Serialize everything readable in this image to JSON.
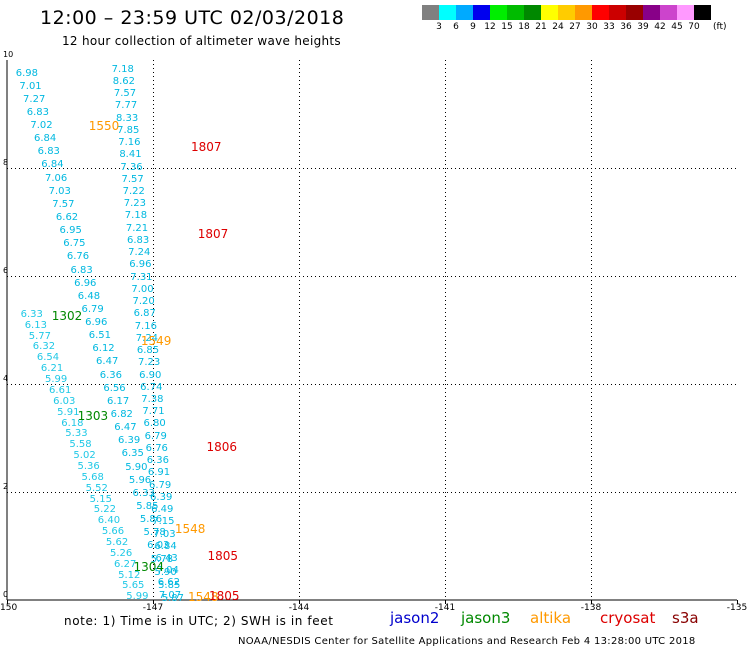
{
  "header": {
    "title": "12:00 – 23:59 UTC 02/03/2018",
    "subtitle": "12 hour collection of altimeter wave heights"
  },
  "legend": {
    "bins": [
      {
        "label": "3",
        "color": "#808080"
      },
      {
        "label": "6",
        "color": "#00ffff"
      },
      {
        "label": "9",
        "color": "#00aaff"
      },
      {
        "label": "12",
        "color": "#0000ee"
      },
      {
        "label": "15",
        "color": "#00ee00"
      },
      {
        "label": "18",
        "color": "#00bb00"
      },
      {
        "label": "21",
        "color": "#008800"
      },
      {
        "label": "24",
        "color": "#ffff00"
      },
      {
        "label": "27",
        "color": "#ffcc00"
      },
      {
        "label": "30",
        "color": "#ff9900"
      },
      {
        "label": "33",
        "color": "#ff0000"
      },
      {
        "label": "36",
        "color": "#cc0000"
      },
      {
        "label": "39",
        "color": "#990000"
      },
      {
        "label": "42",
        "color": "#880088"
      },
      {
        "label": "45",
        "color": "#cc44cc"
      },
      {
        "label": "70",
        "color": "#ff99ff"
      },
      {
        "label": "",
        "color": "#000000"
      }
    ],
    "unit": "(ft)"
  },
  "map": {
    "lon_min": -150,
    "lon_max": -135,
    "lat_min": 0,
    "lat_max": 10,
    "x_ticks": [
      {
        "value": -150,
        "label": "-150"
      },
      {
        "value": -147,
        "label": "-147"
      },
      {
        "value": -144,
        "label": "-144"
      },
      {
        "value": -141,
        "label": "-141"
      },
      {
        "value": -138,
        "label": "-138"
      },
      {
        "value": -135,
        "label": "-135"
      }
    ],
    "y_ticks": [
      {
        "value": 0,
        "label": "0"
      },
      {
        "value": 2,
        "label": "2"
      },
      {
        "value": 4,
        "label": "4"
      },
      {
        "value": 6,
        "label": "6"
      },
      {
        "value": 8,
        "label": "8"
      },
      {
        "value": 10,
        "label": "10"
      }
    ],
    "colors": {
      "light_cyan": "#1fc8e6",
      "cyan": "#00b8e0",
      "green": "#008800",
      "orange": "#ff9900",
      "red": "#dd0000"
    },
    "tracks": [
      {
        "name": "track-a",
        "color": "cyan",
        "lon_start": -149.82,
        "lon_end": -146.82,
        "lat_start": 9.75,
        "lat_end": 0.02,
        "values": [
          "6.98",
          "7.01",
          "7.27",
          "6.83",
          "7.02",
          "6.84",
          "6.83",
          "6.84",
          "7.06",
          "7.03",
          "7.57",
          "6.62",
          "6.95",
          "6.75",
          "6.76",
          "6.83",
          "6.96",
          "6.48",
          "6.79",
          "6.96",
          "6.51",
          "6.12",
          "6.47",
          "6.36",
          "6.56",
          "6.17",
          "6.82",
          "6.47",
          "6.39",
          "6.35",
          "5.90",
          "5.96",
          "6.33",
          "5.85",
          "5.86",
          "5.78",
          "6.03",
          "5.78",
          "5.90",
          "5.85",
          "5.87"
        ]
      },
      {
        "name": "track-b",
        "color": "cyan",
        "lon_start": -147.85,
        "lon_end": -146.88,
        "lat_start": 9.82,
        "lat_end": 0.08,
        "values": [
          "7.18",
          "8.62",
          "7.57",
          "7.77",
          "8.33",
          "7.85",
          "7.16",
          "8.41",
          "7.36",
          "7.57",
          "7.22",
          "7.23",
          "7.18",
          "7.21",
          "6.83",
          "7.24",
          "6.96",
          "7.31",
          "7.00",
          "7.20",
          "6.87",
          "7.16",
          "7.24",
          "6.85",
          "7.23",
          "6.90",
          "6.74",
          "7.38",
          "7.71",
          "6.80",
          "6.79",
          "6.76",
          "6.36",
          "6.91",
          "6.79",
          "6.39",
          "6.49",
          "7.15",
          "7.03",
          "6.84",
          "6.43",
          "7.04",
          "6.62",
          "7.07"
        ]
      },
      {
        "name": "track-c",
        "color": "light_cyan",
        "lon_start": -149.72,
        "lon_end": -147.55,
        "lat_start": 5.28,
        "lat_end": 0.05,
        "values": [
          "6.33",
          "6.13",
          "5.77",
          "6.32",
          "6.54",
          "6.21",
          "5.99",
          "6.61",
          "6.03",
          "5.91",
          "6.18",
          "5.33",
          "5.58",
          "5.02",
          "5.36",
          "5.68",
          "5.52",
          "5.15",
          "5.22",
          "6.40",
          "5.66",
          "5.62",
          "5.26",
          "6.27",
          "5.12",
          "5.65",
          "5.99"
        ]
      }
    ],
    "pass_times": [
      {
        "text": "1550",
        "color": "orange",
        "lon": -148.32,
        "lat": 8.78
      },
      {
        "text": "1807",
        "color": "red",
        "lon": -146.22,
        "lat": 8.38
      },
      {
        "text": "1807",
        "color": "red",
        "lon": -146.08,
        "lat": 6.77
      },
      {
        "text": "1302",
        "color": "green",
        "lon": -149.08,
        "lat": 5.26
      },
      {
        "text": "1549",
        "color": "orange",
        "lon": -147.25,
        "lat": 4.79
      },
      {
        "text": "1303",
        "color": "green",
        "lon": -148.55,
        "lat": 3.41
      },
      {
        "text": "1806",
        "color": "red",
        "lon": -145.9,
        "lat": 2.83
      },
      {
        "text": "1548",
        "color": "orange",
        "lon": -146.55,
        "lat": 1.32
      },
      {
        "text": "1805",
        "color": "red",
        "lon": -145.88,
        "lat": 0.82
      },
      {
        "text": "1304",
        "color": "green",
        "lon": -147.4,
        "lat": 0.61
      },
      {
        "text": "1548",
        "color": "orange",
        "lon": -146.28,
        "lat": 0.06
      },
      {
        "text": "1805",
        "color": "red",
        "lon": -145.85,
        "lat": 0.07
      }
    ]
  },
  "footer": {
    "note": "note: 1) Time is in UTC; 2) SWH is in feet",
    "satellites": [
      {
        "name": "jason2",
        "color": "#0000cc"
      },
      {
        "name": "jason3",
        "color": "#008800"
      },
      {
        "name": "altika",
        "color": "#ff9900"
      },
      {
        "name": "cryosat",
        "color": "#dd0000"
      },
      {
        "name": "s3a",
        "color": "#880000"
      }
    ],
    "credit": "NOAA/NESDIS Center for Satellite Applications and Research    Feb  4 13:28:00 UTC 2018"
  }
}
